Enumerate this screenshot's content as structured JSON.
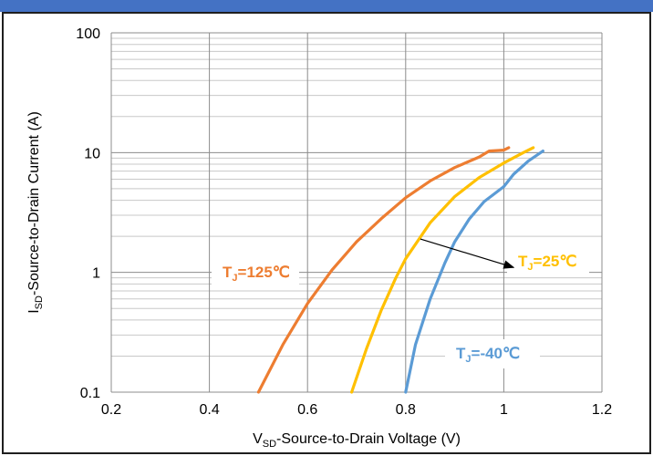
{
  "chart_data": {
    "type": "line",
    "xlabel": {
      "main": "V",
      "sub": "SD",
      "rest": "-Source-to-Drain Voltage (V)"
    },
    "ylabel": {
      "main": "I",
      "sub": "SD",
      "rest": "-Source-to-Drain Current (A)"
    },
    "xlim": [
      0.2,
      1.2
    ],
    "ylim": [
      0.1,
      100
    ],
    "yscale": "log",
    "grid": true,
    "xticks": [
      0.2,
      0.4,
      0.6,
      0.8,
      1.0,
      1.2
    ],
    "xtick_labels": [
      "0.2",
      "0.4",
      "0.6",
      "0.8",
      "1",
      "1.2"
    ],
    "yticks": [
      0.1,
      1,
      10,
      100
    ],
    "ytick_labels": [
      "0.1",
      "1",
      "10",
      "100"
    ],
    "series": [
      {
        "name": "TJ=125℃",
        "label": {
          "main": "T",
          "sub": "J",
          "rest": "=125℃"
        },
        "color": "#ed7d31",
        "x": [
          0.5,
          0.55,
          0.6,
          0.65,
          0.7,
          0.75,
          0.8,
          0.85,
          0.9,
          0.95,
          0.97,
          1.0,
          1.01
        ],
        "y": [
          0.1,
          0.25,
          0.55,
          1.05,
          1.8,
          2.8,
          4.2,
          5.8,
          7.5,
          9.2,
          10.3,
          10.5,
          11.0
        ]
      },
      {
        "name": "TJ=25℃",
        "label": {
          "main": "T",
          "sub": "J",
          "rest": "=25℃"
        },
        "color": "#ffc000",
        "x": [
          0.69,
          0.72,
          0.75,
          0.78,
          0.8,
          0.85,
          0.9,
          0.95,
          1.0,
          1.04,
          1.06
        ],
        "y": [
          0.1,
          0.23,
          0.48,
          0.9,
          1.3,
          2.6,
          4.3,
          6.2,
          8.2,
          10.0,
          11.0
        ]
      },
      {
        "name": "TJ=-40℃",
        "label": {
          "main": "T",
          "sub": "J",
          "rest": "=-40℃"
        },
        "color": "#5b9bd5",
        "x": [
          0.8,
          0.82,
          0.85,
          0.88,
          0.9,
          0.93,
          0.96,
          0.98,
          1.0,
          1.02,
          1.05,
          1.08
        ],
        "y": [
          0.1,
          0.25,
          0.6,
          1.2,
          1.8,
          2.8,
          3.9,
          4.5,
          5.2,
          6.6,
          8.5,
          10.3
        ]
      }
    ],
    "annotation_arrow": {
      "from": [
        0.83,
        1.9
      ],
      "to": [
        1.02,
        1.1
      ]
    }
  }
}
